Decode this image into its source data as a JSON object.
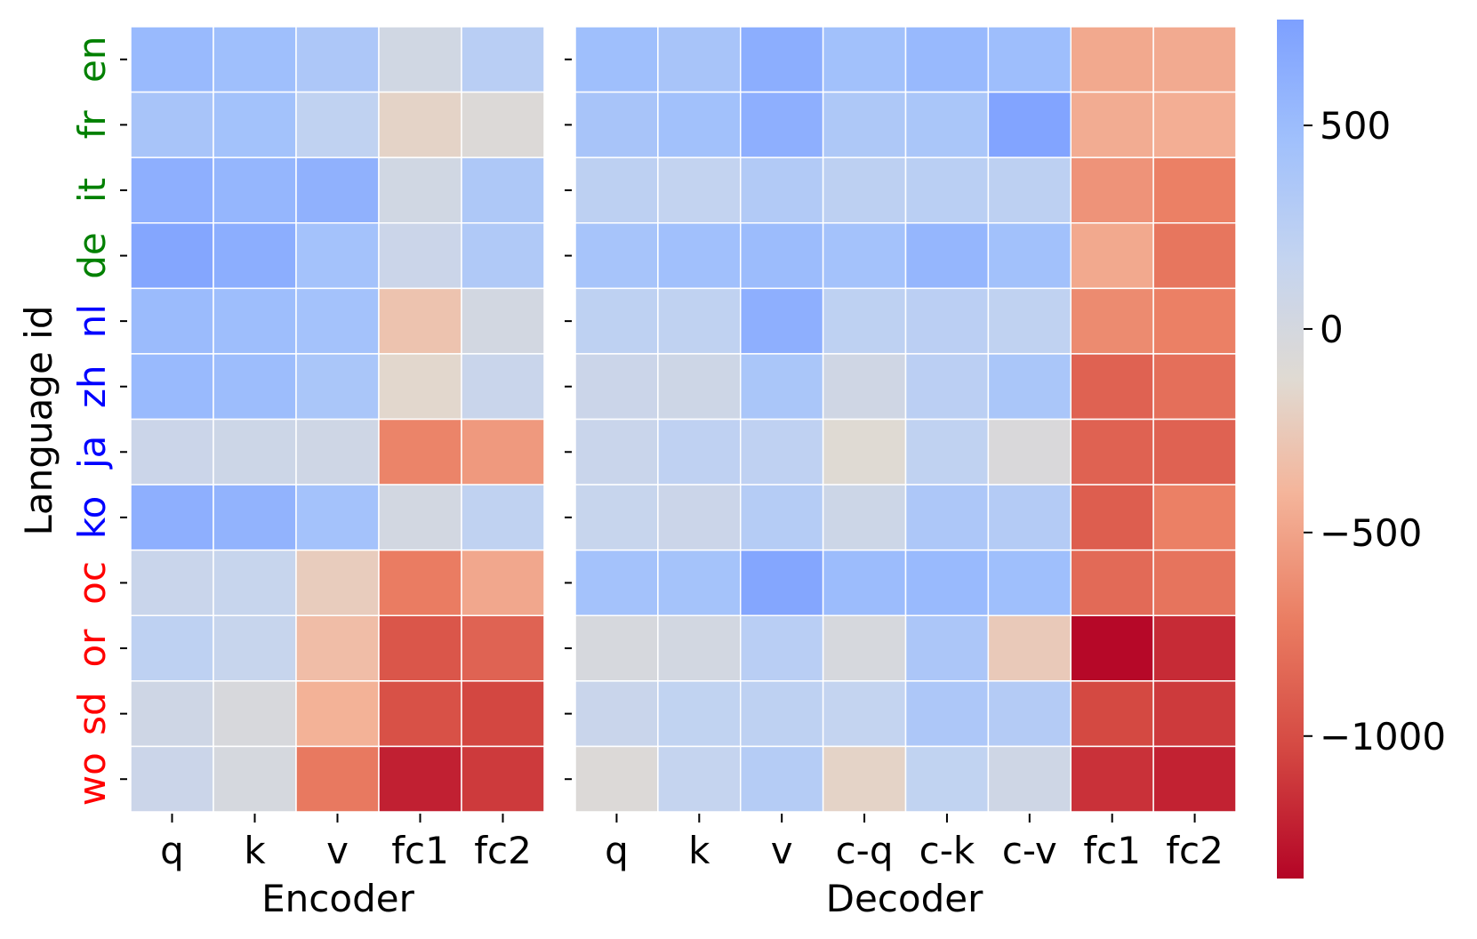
{
  "chart_data": {
    "type": "heatmap",
    "ylabel": "Language id",
    "languages": [
      {
        "label": "en",
        "color": "#008000"
      },
      {
        "label": "fr",
        "color": "#008000"
      },
      {
        "label": "it",
        "color": "#008000"
      },
      {
        "label": "de",
        "color": "#008000"
      },
      {
        "label": "nl",
        "color": "#0000ff"
      },
      {
        "label": "zh",
        "color": "#0000ff"
      },
      {
        "label": "ja",
        "color": "#0000ff"
      },
      {
        "label": "ko",
        "color": "#0000ff"
      },
      {
        "label": "oc",
        "color": "#ff0000"
      },
      {
        "label": "or",
        "color": "#ff0000"
      },
      {
        "label": "sd",
        "color": "#ff0000"
      },
      {
        "label": "wo",
        "color": "#ff0000"
      }
    ],
    "colormap": "coolwarm_r",
    "vmin": -1350,
    "vmax": 760,
    "colorbar_ticks": [
      {
        "value": 500,
        "label": "500"
      },
      {
        "value": 0,
        "label": "0"
      },
      {
        "value": -500,
        "label": "−500"
      },
      {
        "value": -1000,
        "label": "−1000"
      }
    ],
    "panels": [
      {
        "xlabel": "Encoder",
        "columns": [
          "q",
          "k",
          "v",
          "fc1",
          "fc2"
        ],
        "values": [
          [
            520,
            470,
            360,
            40,
            260
          ],
          [
            400,
            440,
            200,
            -180,
            -80
          ],
          [
            620,
            560,
            600,
            40,
            350
          ],
          [
            700,
            630,
            430,
            100,
            330
          ],
          [
            510,
            480,
            430,
            -300,
            20
          ],
          [
            520,
            490,
            380,
            -150,
            120
          ],
          [
            100,
            80,
            60,
            -680,
            -560
          ],
          [
            620,
            580,
            430,
            20,
            200
          ],
          [
            120,
            140,
            -230,
            -720,
            -480
          ],
          [
            220,
            140,
            -340,
            -950,
            -870
          ],
          [
            60,
            -30,
            -420,
            -980,
            -1040
          ],
          [
            100,
            -10,
            -740,
            -1220,
            -1100
          ]
        ]
      },
      {
        "xlabel": "Decoder",
        "columns": [
          "q",
          "k",
          "v",
          "c-q",
          "c-k",
          "c-v",
          "fc1",
          "fc2"
        ],
        "values": [
          [
            470,
            400,
            630,
            450,
            530,
            480,
            -470,
            -460
          ],
          [
            400,
            450,
            620,
            350,
            380,
            720,
            -450,
            -440
          ],
          [
            230,
            180,
            320,
            230,
            250,
            230,
            -590,
            -700
          ],
          [
            410,
            460,
            500,
            430,
            560,
            450,
            -470,
            -760
          ],
          [
            220,
            200,
            620,
            220,
            240,
            200,
            -640,
            -700
          ],
          [
            100,
            70,
            380,
            50,
            240,
            380,
            -880,
            -800
          ],
          [
            120,
            210,
            210,
            -120,
            200,
            -50,
            -880,
            -880
          ],
          [
            140,
            100,
            290,
            80,
            360,
            300,
            -900,
            -700
          ],
          [
            430,
            420,
            700,
            500,
            520,
            470,
            -830,
            -770
          ],
          [
            -20,
            20,
            260,
            -20,
            370,
            -250,
            -1330,
            -1170
          ],
          [
            120,
            190,
            220,
            170,
            360,
            300,
            -1030,
            -1100
          ],
          [
            -80,
            160,
            290,
            -180,
            190,
            60,
            -1140,
            -1210
          ]
        ]
      }
    ]
  }
}
